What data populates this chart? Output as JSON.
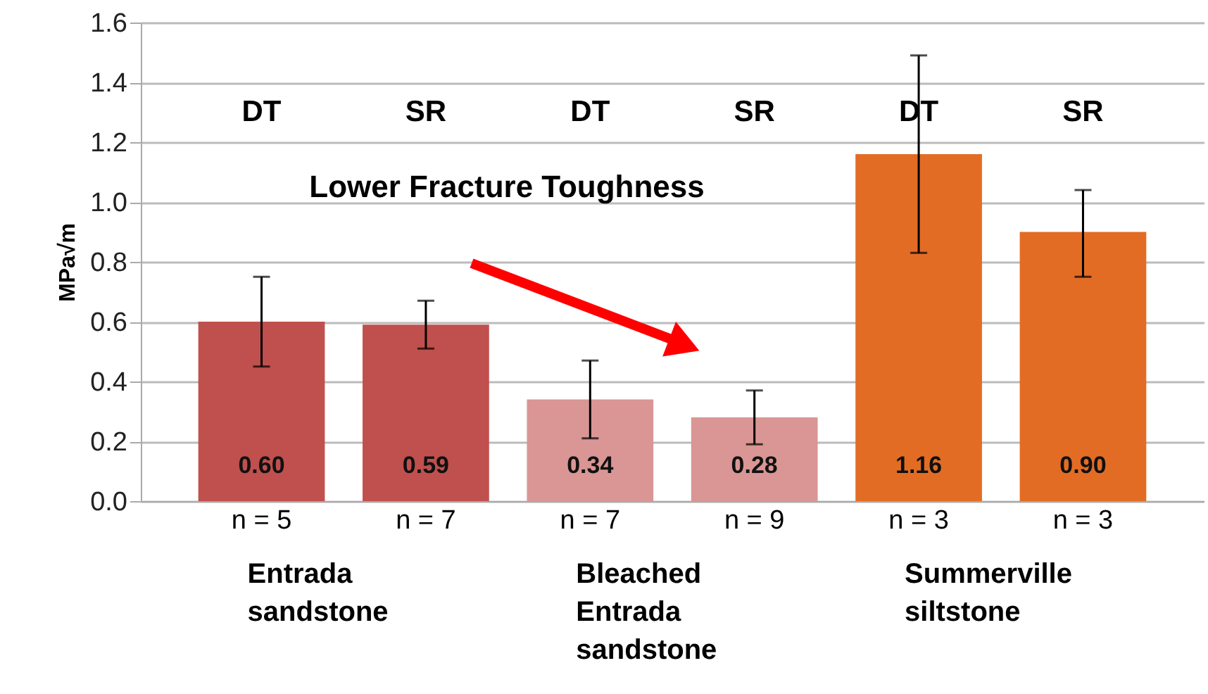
{
  "chart_data": {
    "type": "bar",
    "ylabel": "MPa√m",
    "categories": [
      "n = 5",
      "n = 7",
      "n = 7",
      "n = 9",
      "n = 3",
      "n = 3"
    ],
    "values": [
      0.6,
      0.59,
      0.34,
      0.28,
      1.16,
      0.9
    ],
    "colors": [
      "#c0504d",
      "#c0504d",
      "#d99694",
      "#d99694",
      "#e36c25",
      "#e36c25"
    ],
    "errors": [
      [
        0.45,
        0.75
      ],
      [
        0.51,
        0.67
      ],
      [
        0.21,
        0.47
      ],
      [
        0.19,
        0.37
      ],
      [
        0.83,
        1.49
      ],
      [
        0.75,
        1.04
      ]
    ],
    "value_labels": [
      "0.60",
      "0.59",
      "0.34",
      "0.28",
      "1.16",
      "0.90"
    ],
    "ylim": [
      0,
      1.6
    ],
    "yticks": [
      {
        "value": 0,
        "label": "0.0"
      },
      0.2,
      0.4,
      0.6,
      0.8,
      {
        "value": 1,
        "label": "1.0"
      },
      1.2,
      1.4,
      1.6
    ],
    "grid": "y",
    "annotations": [
      "DT",
      "SR",
      "DT",
      "SR",
      "DT",
      "SR",
      "Lower Fracture Toughness",
      "Entrada\nsandstone",
      "Bleached\nEntrada\nsandstone",
      "Summerville\nsiltstone"
    ]
  }
}
